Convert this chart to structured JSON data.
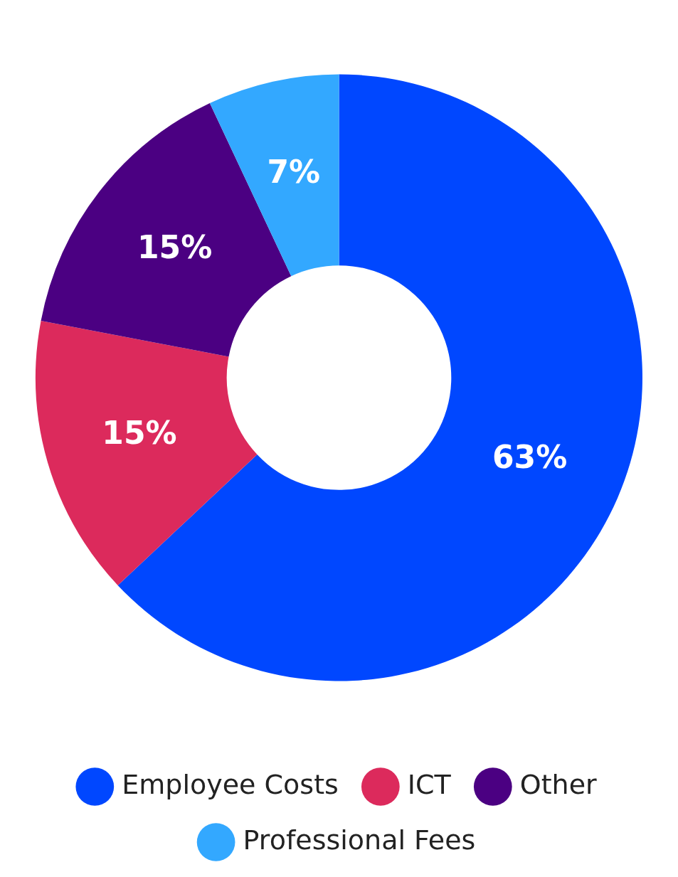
{
  "chart_data": {
    "type": "donut",
    "categories": [
      "Employee Costs",
      "ICT",
      "Other",
      "Professional Fees"
    ],
    "values": [
      63,
      15,
      15,
      7
    ],
    "value_labels": [
      "63%",
      "15%",
      "15%",
      "7%"
    ],
    "colors": [
      "#0047ff",
      "#dc2a5c",
      "#4b0082",
      "#33a8ff"
    ],
    "legend": "bottom"
  }
}
